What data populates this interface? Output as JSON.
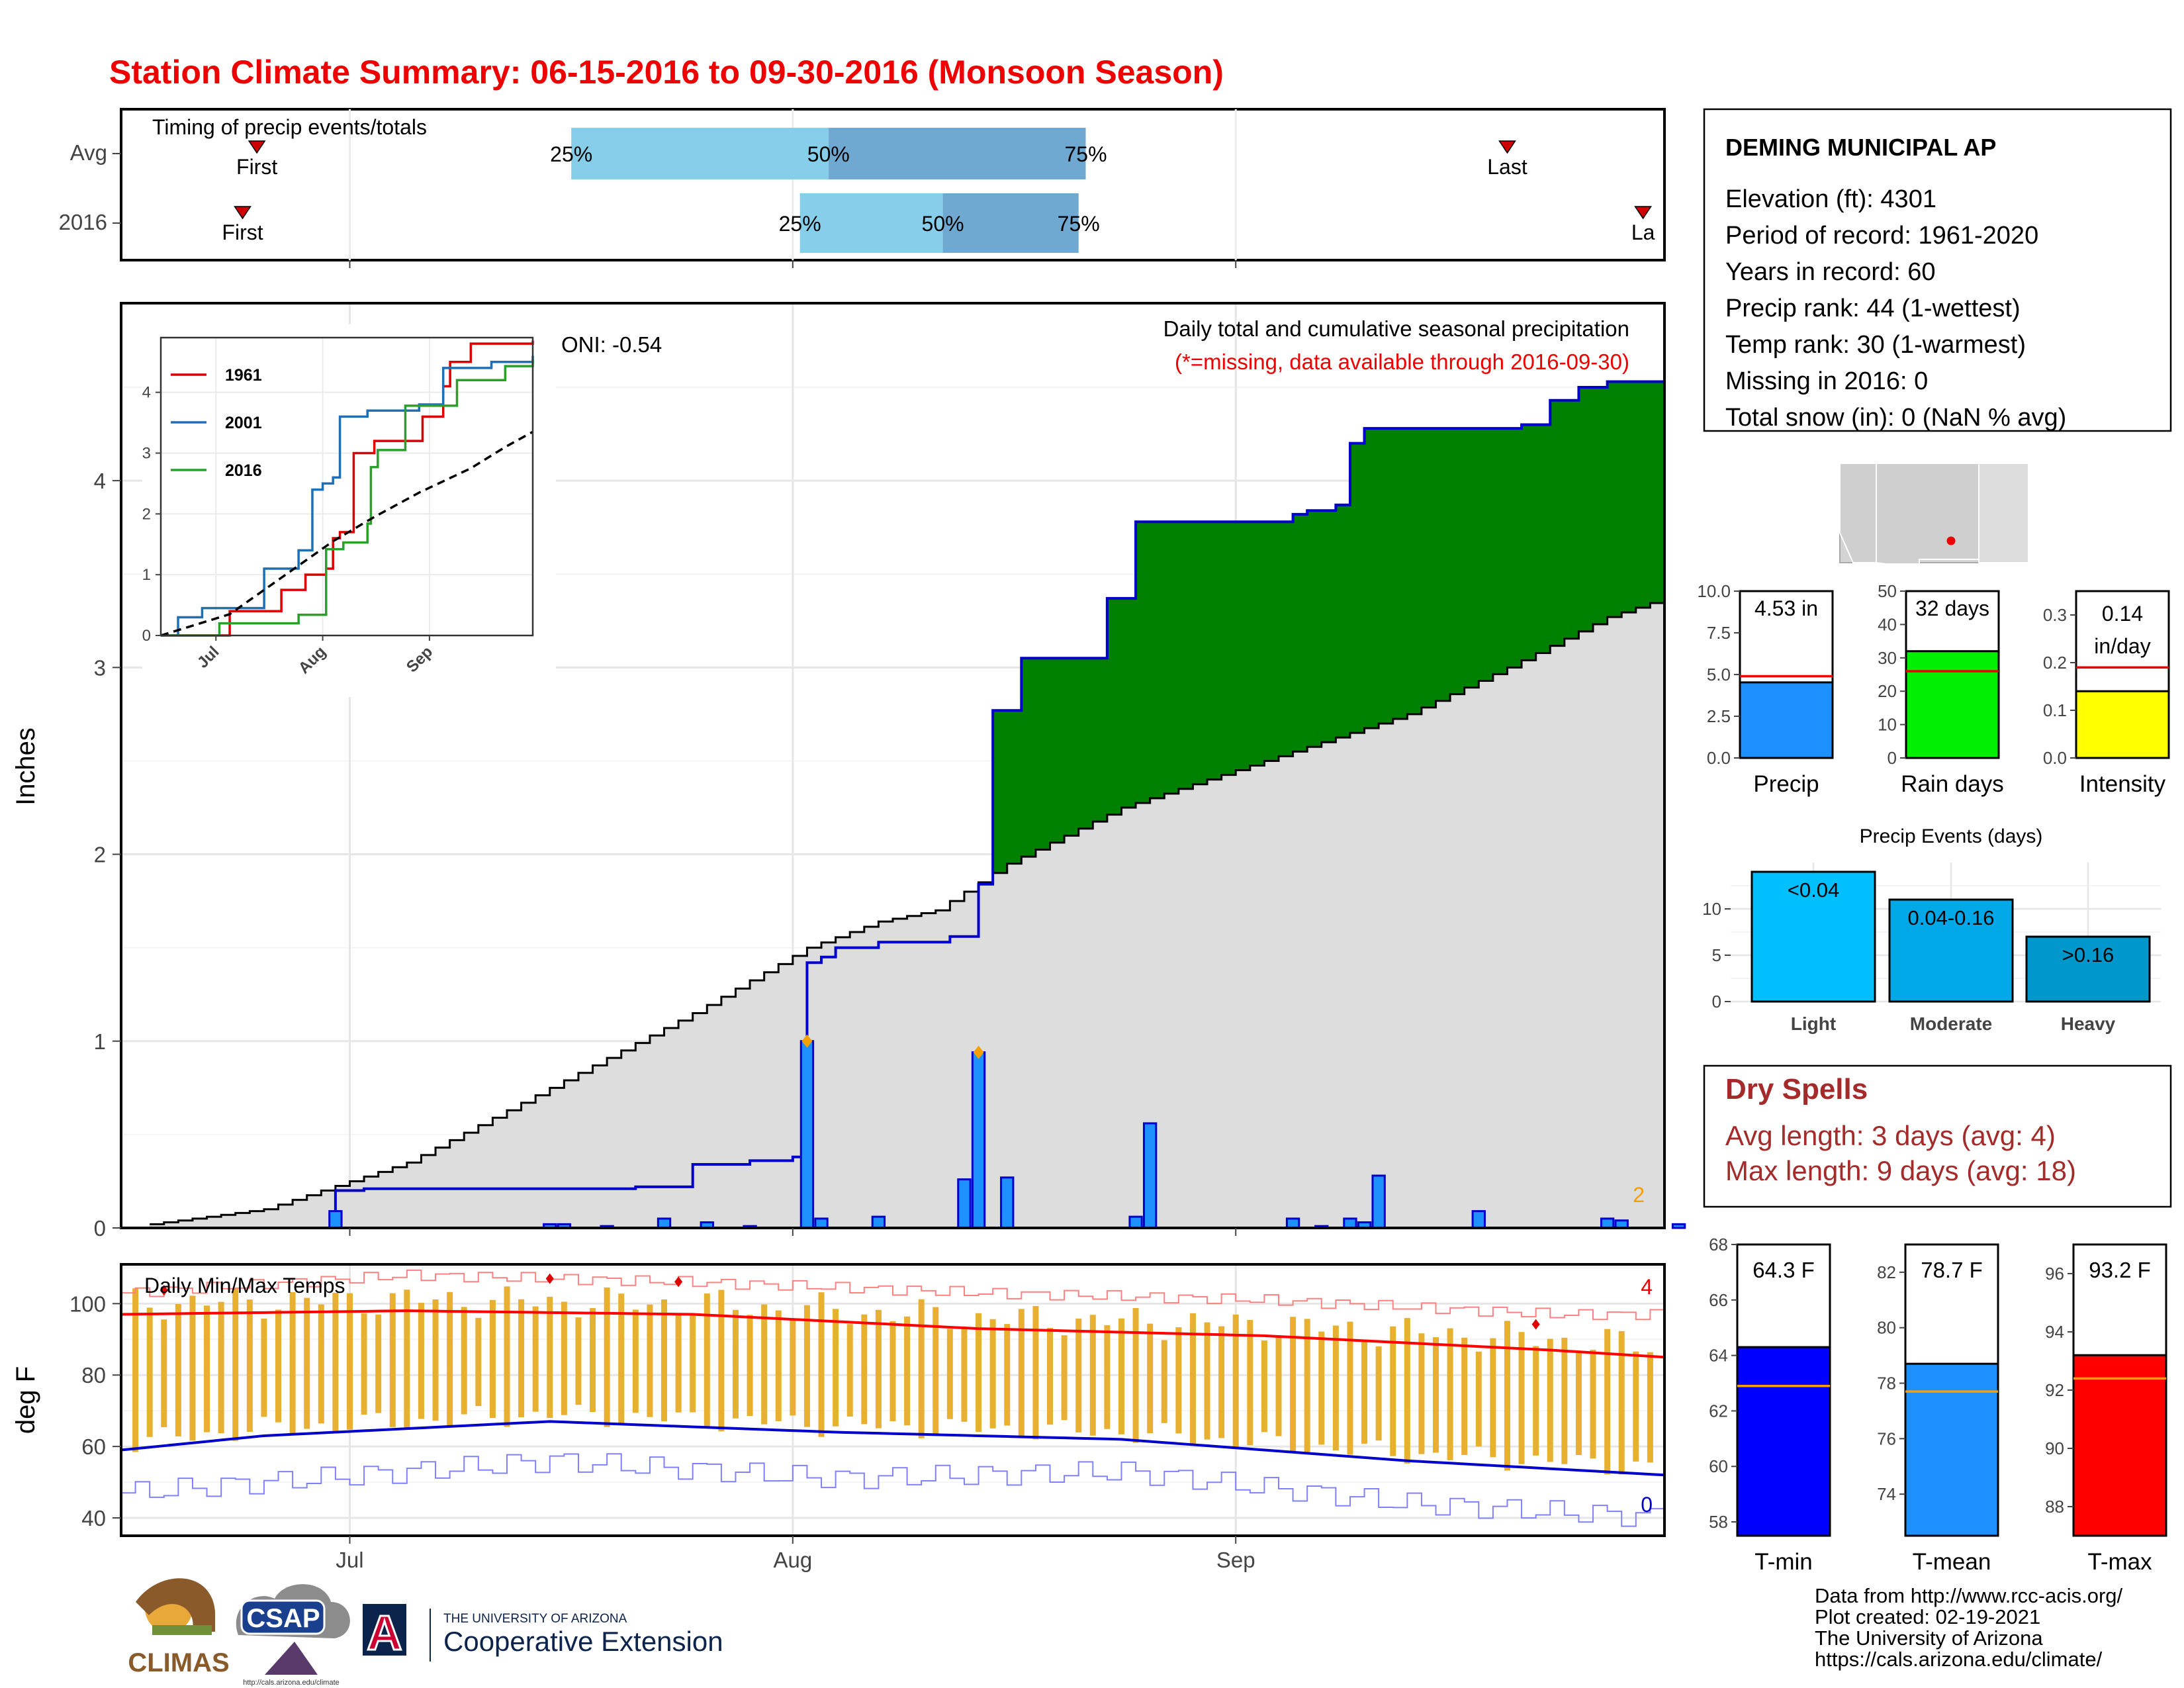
{
  "title": "Station Climate Summary: 06-15-2016 to 09-30-2016 (Monsoon Season)",
  "colors": {
    "title": "#ee0000",
    "precip_bar": "#1e90ff",
    "cum_avg_fill": "#dddddd",
    "above_avg": "#008000",
    "below_avg": "#8b5a00",
    "cum_line": "#0000cc",
    "tmax_line": "#ff0000",
    "tmin_line": "#0000cc",
    "range_bar": "#e8b030",
    "dry_spells": "#a52a2a"
  },
  "station": {
    "name": "DEMING MUNICIPAL AP",
    "lines": [
      "Elevation (ft): 4301",
      "Period of record: 1961-2020",
      "Years in record: 60",
      "Precip rank: 44 (1-wettest)",
      "Temp rank: 30 (1-warmest)",
      "Missing in 2016: 0",
      "Total snow (in): 0 (NaN % avg)"
    ]
  },
  "timing": {
    "label": "Timing of precip events/totals",
    "rows": [
      "Avg",
      "2016"
    ],
    "first_label": "First",
    "last_label": "Last",
    "last_label_clipped": "La",
    "pct_labels": [
      "25%",
      "50%",
      "75%"
    ]
  },
  "months": [
    "Jul",
    "Aug",
    "Sep"
  ],
  "main": {
    "ylabel": "Inches",
    "title": "Daily total and cumulative seasonal precipitation",
    "subtitle": "(*=missing, data available through 2016-09-30)",
    "oni": "ONI: -0.54",
    "count_label": "2",
    "yticks": [
      "0",
      "1",
      "2",
      "3",
      "4"
    ]
  },
  "inset": {
    "yticks": [
      "0",
      "1",
      "2",
      "3",
      "4"
    ],
    "legend": [
      {
        "name": "1961",
        "color": "#dd0000"
      },
      {
        "name": "2001",
        "color": "#1f6fb5"
      },
      {
        "name": "2016",
        "color": "#2aa02a"
      }
    ]
  },
  "temps": {
    "label": "Daily Min/Max Temps",
    "ylabel": "deg F",
    "yticks": [
      "40",
      "60",
      "80",
      "100"
    ],
    "count_high": "4",
    "count_low": "0"
  },
  "stats": {
    "precip": {
      "value_label": "4.53 in",
      "xlabel": "Precip",
      "yticks": [
        "0.0",
        "2.5",
        "5.0",
        "7.5",
        "10.0"
      ]
    },
    "rain_days": {
      "value_label": "32 days",
      "xlabel": "Rain days",
      "yticks": [
        "0",
        "10",
        "20",
        "30",
        "40",
        "50"
      ]
    },
    "intensity": {
      "value_label": "0.14",
      "value_label2": "in/day",
      "xlabel": "Intensity",
      "yticks": [
        "0.0",
        "0.1",
        "0.2",
        "0.3"
      ]
    }
  },
  "events": {
    "title": "Precip Events (days)",
    "yticks": [
      "0",
      "5",
      "10"
    ],
    "categories": [
      "Light",
      "Moderate",
      "Heavy"
    ],
    "bar_labels": [
      "<0.04",
      "0.04-0.16",
      ">0.16"
    ]
  },
  "dry_spells": {
    "title": "Dry Spells",
    "avg_line": "Avg length: 3 days (avg: 4)",
    "max_line": "Max length: 9 days (avg: 18)"
  },
  "temp_stats": {
    "tmin": {
      "value_label": "64.3 F",
      "xlabel": "T-min",
      "yticks": [
        "58",
        "60",
        "62",
        "64",
        "66",
        "68"
      ]
    },
    "tmean": {
      "value_label": "78.7 F",
      "xlabel": "T-mean",
      "yticks": [
        "74",
        "76",
        "78",
        "80",
        "82"
      ]
    },
    "tmax": {
      "value_label": "93.2 F",
      "xlabel": "T-max",
      "yticks": [
        "88",
        "90",
        "92",
        "94",
        "96"
      ]
    }
  },
  "footer": {
    "lines": [
      "Data from http://www.rcc-acis.org/",
      "Plot created: 02-19-2021",
      "The University of Arizona",
      "https://cals.arizona.edu/climate/"
    ],
    "logos": {
      "climas": "CLIMAS",
      "csap": "CSAP",
      "csap_url": "http://cals.arizona.edu/climate",
      "ua_letter": "A",
      "ua_line1": "THE UNIVERSITY OF ARIZONA",
      "ua_line2": "Cooperative Extension"
    }
  },
  "chart_data": [
    {
      "type": "area",
      "name": "cumulative precipitation",
      "xlabel": "",
      "ylabel": "Inches",
      "ylim": [
        0,
        4.95
      ],
      "x_range": [
        "2016-06-15",
        "2016-09-30"
      ],
      "cum_2016": [
        [
          15,
          0.2
        ],
        [
          17,
          0.21
        ],
        [
          36,
          0.22
        ],
        [
          40,
          0.34
        ],
        [
          44,
          0.36
        ],
        [
          47,
          0.38
        ],
        [
          48,
          1.42
        ],
        [
          49,
          1.45
        ],
        [
          50,
          1.5
        ],
        [
          53,
          1.53
        ],
        [
          58,
          1.56
        ],
        [
          60,
          1.84
        ],
        [
          61,
          2.77
        ],
        [
          63,
          3.05
        ],
        [
          69,
          3.37
        ],
        [
          71,
          3.78
        ],
        [
          82,
          3.82
        ],
        [
          83,
          3.84
        ],
        [
          85,
          3.87
        ],
        [
          86,
          4.2
        ],
        [
          87,
          4.28
        ],
        [
          98,
          4.3
        ],
        [
          100,
          4.43
        ],
        [
          102,
          4.5
        ],
        [
          104,
          4.53
        ]
      ],
      "cum_avg": [
        [
          0,
          0
        ],
        [
          10,
          0.1
        ],
        [
          20,
          0.35
        ],
        [
          30,
          0.75
        ],
        [
          40,
          1.15
        ],
        [
          48,
          1.5
        ],
        [
          53,
          1.64
        ],
        [
          57,
          1.7
        ],
        [
          62,
          1.95
        ],
        [
          70,
          2.25
        ],
        [
          80,
          2.5
        ],
        [
          90,
          2.75
        ],
        [
          97,
          3.0
        ],
        [
          104,
          3.27
        ],
        [
          108,
          3.37
        ]
      ],
      "daily_2016": [
        [
          15,
          0.09
        ],
        [
          30,
          0.02
        ],
        [
          31,
          0.02
        ],
        [
          34,
          0.01
        ],
        [
          38,
          0.05
        ],
        [
          41,
          0.03
        ],
        [
          44,
          0.01
        ],
        [
          48,
          1.0
        ],
        [
          49,
          0.05
        ],
        [
          53,
          0.06
        ],
        [
          59,
          0.26
        ],
        [
          60,
          0.94
        ],
        [
          62,
          0.27
        ],
        [
          71,
          0.06
        ],
        [
          72,
          0.56
        ],
        [
          82,
          0.05
        ],
        [
          84,
          0.01
        ],
        [
          86,
          0.05
        ],
        [
          87,
          0.03
        ],
        [
          88,
          0.28
        ],
        [
          95,
          0.09
        ],
        [
          104,
          0.05
        ],
        [
          105,
          0.04
        ],
        [
          109,
          0.02
        ]
      ],
      "highlight_days": [
        48,
        60
      ]
    },
    {
      "type": "line",
      "name": "inset cumulative comparison",
      "ylim": [
        0,
        4.9
      ],
      "series": [
        {
          "name": "1961",
          "values": [
            [
              0,
              0
            ],
            [
              20,
              0.4
            ],
            [
              35,
              0.75
            ],
            [
              42,
              1.0
            ],
            [
              48,
              1.1
            ],
            [
              50,
              1.6
            ],
            [
              52,
              1.7
            ],
            [
              56,
              3.0
            ],
            [
              62,
              3.2
            ],
            [
              76,
              3.6
            ],
            [
              82,
              4.1
            ],
            [
              84,
              4.5
            ],
            [
              90,
              4.8
            ],
            [
              108,
              4.85
            ]
          ]
        },
        {
          "name": "2001",
          "values": [
            [
              0,
              0
            ],
            [
              5,
              0.3
            ],
            [
              12,
              0.45
            ],
            [
              30,
              1.1
            ],
            [
              40,
              1.4
            ],
            [
              44,
              2.4
            ],
            [
              47,
              2.5
            ],
            [
              50,
              2.6
            ],
            [
              52,
              3.6
            ],
            [
              60,
              3.7
            ],
            [
              75,
              3.8
            ],
            [
              82,
              4.4
            ],
            [
              90,
              4.4
            ],
            [
              96,
              4.5
            ],
            [
              108,
              4.6
            ]
          ]
        },
        {
          "name": "2016",
          "values": [
            [
              0,
              0
            ],
            [
              17,
              0.2
            ],
            [
              40,
              0.34
            ],
            [
              48,
              1.42
            ],
            [
              53,
              1.53
            ],
            [
              60,
              1.84
            ],
            [
              61,
              2.77
            ],
            [
              63,
              3.05
            ],
            [
              71,
              3.78
            ],
            [
              86,
              4.2
            ],
            [
              100,
              4.43
            ],
            [
              108,
              4.53
            ]
          ]
        },
        {
          "name": "",
          "values": [
            [
              0,
              0
            ],
            [
              20,
              0.35
            ],
            [
              40,
              1.15
            ],
            [
              50,
              1.55
            ],
            [
              62,
              1.95
            ],
            [
              75,
              2.35
            ],
            [
              90,
              2.75
            ],
            [
              100,
              3.1
            ],
            [
              108,
              3.35
            ]
          ]
        }
      ]
    },
    {
      "type": "bar",
      "name": "daily min/max temperature",
      "ylabel": "deg F",
      "ylim": [
        35,
        111
      ],
      "tmax_smooth": [
        [
          0,
          97
        ],
        [
          20,
          98
        ],
        [
          40,
          97
        ],
        [
          60,
          93
        ],
        [
          80,
          91
        ],
        [
          100,
          87
        ],
        [
          108,
          85
        ]
      ],
      "tmin_smooth": [
        [
          0,
          59
        ],
        [
          10,
          63
        ],
        [
          30,
          67
        ],
        [
          50,
          64
        ],
        [
          70,
          62
        ],
        [
          90,
          56
        ],
        [
          108,
          52
        ]
      ],
      "record_high": [
        [
          0,
          103
        ],
        [
          20,
          108
        ],
        [
          40,
          106
        ],
        [
          60,
          103
        ],
        [
          80,
          101
        ],
        [
          100,
          97
        ],
        [
          108,
          97
        ]
      ],
      "record_low": [
        [
          0,
          47
        ],
        [
          10,
          50
        ],
        [
          30,
          56
        ],
        [
          50,
          51
        ],
        [
          70,
          53
        ],
        [
          90,
          44
        ],
        [
          108,
          40
        ]
      ]
    },
    {
      "type": "bar",
      "name": "season totals",
      "categories": [
        "Precip",
        "Rain days",
        "Intensity"
      ],
      "values": [
        4.53,
        32,
        0.14
      ],
      "averages": [
        4.9,
        26,
        0.19
      ],
      "ylim": [
        [
          0,
          10
        ],
        [
          0,
          50
        ],
        [
          0,
          0.35
        ]
      ]
    },
    {
      "type": "bar",
      "title": "Precip Events (days)",
      "categories": [
        "Light",
        "Moderate",
        "Heavy"
      ],
      "values": [
        14,
        11,
        7
      ],
      "ylim": [
        0,
        15
      ]
    },
    {
      "type": "bar",
      "name": "season temperature",
      "categories": [
        "T-min",
        "T-mean",
        "T-max"
      ],
      "values": [
        64.3,
        78.7,
        93.2
      ],
      "averages": [
        62.9,
        77.7,
        92.4
      ],
      "ylim": [
        [
          57.5,
          68
        ],
        [
          72.5,
          83
        ],
        [
          87,
          97
        ]
      ]
    }
  ]
}
